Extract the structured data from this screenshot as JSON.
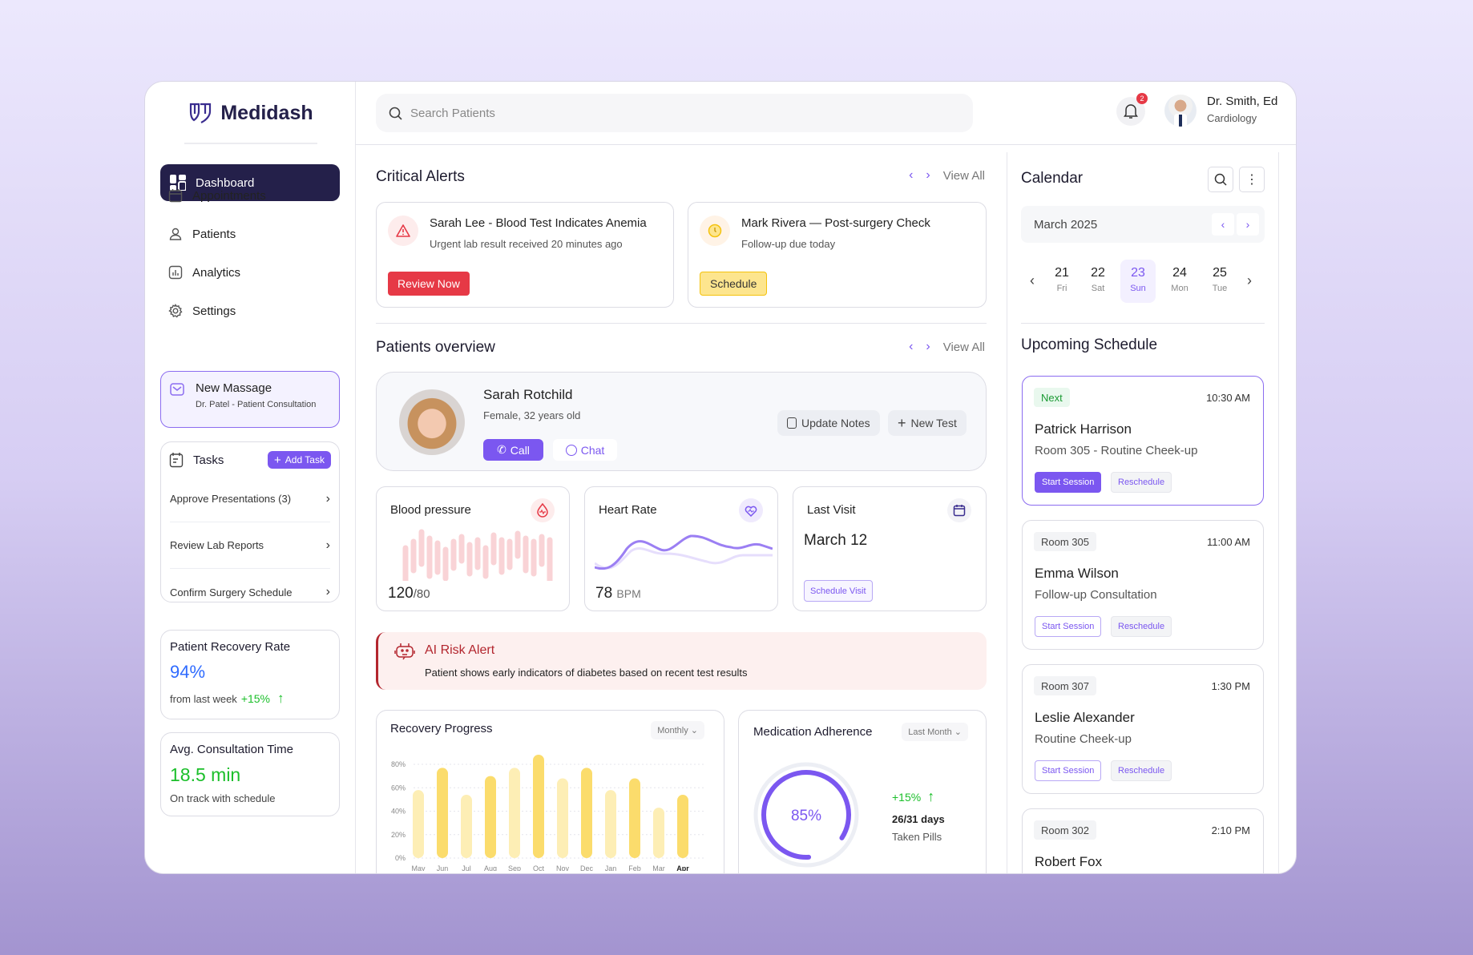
{
  "app": {
    "name": "Medidash"
  },
  "colors": {
    "accent": "#7b57f0",
    "navy": "#24204a",
    "danger": "#e63946",
    "warning": "#fde58e",
    "success": "#1bbf2a",
    "info": "#2f6bff"
  },
  "sidebar": {
    "active": {
      "label": "Dashboard",
      "icon": "grid-icon"
    },
    "items": [
      {
        "label": "Appointments",
        "icon": "calendar-icon"
      },
      {
        "label": "Patients",
        "icon": "users-icon"
      },
      {
        "label": "Analytics",
        "icon": "chart-icon"
      },
      {
        "label": "Settings",
        "icon": "gear-icon"
      }
    ],
    "message": {
      "title": "New Massage",
      "subtitle": "Dr. Patel - Patient Consultation"
    },
    "tasks": {
      "title": "Tasks",
      "add_label": "Add Task",
      "items": [
        "Approve Presentations (3)",
        "Review Lab Reports",
        "Confirm Surgery Schedule"
      ]
    },
    "recovery": {
      "title": "Patient Recovery Rate",
      "value": "94%",
      "note": "from last week",
      "change": "+15%"
    },
    "consult": {
      "title": "Avg. Consultation Time",
      "value": "18.5 min",
      "note": "On track with schedule"
    }
  },
  "header": {
    "search_placeholder": "Search Patients",
    "notifications": "2",
    "user": {
      "name": "Dr. Smith, Ed",
      "dept": "Cardiology"
    }
  },
  "alerts": {
    "title": "Critical Alerts",
    "view_all": "View All",
    "items": [
      {
        "title": "Sarah Lee - Blood Test Indicates Anemia",
        "sub": "Urgent lab result received 20 minutes ago",
        "action": "Review Now"
      },
      {
        "title": "Mark Rivera — Post-surgery Check",
        "sub": "Follow-up due today",
        "action": "Schedule"
      }
    ]
  },
  "overview": {
    "title": "Patients overview",
    "view_all": "View All",
    "patient": {
      "name": "Sarah Rotchild",
      "info": "Female, 32 years old",
      "call": "Call",
      "chat": "Chat",
      "update_notes": "Update Notes",
      "new_test": "New Test"
    },
    "vitals": {
      "bp": {
        "title": "Blood pressure",
        "sys": "120",
        "dia": "/80"
      },
      "hr": {
        "title": "Heart Rate",
        "value": "78",
        "unit": "BPM"
      },
      "visit": {
        "title": "Last Visit",
        "date": "March 12",
        "action": "Schedule Visit"
      }
    },
    "ai": {
      "title": "AI Risk Alert",
      "text": "Patient shows early indicators of diabetes based on recent test results"
    }
  },
  "chart_data": [
    {
      "type": "bar",
      "title": "Recovery Progress",
      "filter": "Monthly",
      "categories": [
        "May",
        "Jun",
        "Jul",
        "Aug",
        "Sep",
        "Oct",
        "Nov",
        "Dec",
        "Jan",
        "Feb",
        "Mar",
        "Apr"
      ],
      "values": [
        58,
        77,
        54,
        70,
        77,
        89,
        68,
        77,
        58,
        68,
        43,
        54
      ],
      "yticks": [
        "0%",
        "20%",
        "40%",
        "60%",
        "80%"
      ],
      "ylim": [
        0,
        80
      ],
      "grid": true,
      "highlight": "Apr"
    },
    {
      "type": "pie",
      "title": "Medication Adherence",
      "filter": "Last Month",
      "value": 85,
      "label": "85%",
      "change": "+15%",
      "days": "26/31 days",
      "caption": "Taken Pills"
    }
  ],
  "calendar": {
    "title": "Calendar",
    "month": "March 2025",
    "days": [
      {
        "n": "21",
        "w": "Fri"
      },
      {
        "n": "22",
        "w": "Sat"
      },
      {
        "n": "23",
        "w": "Sun",
        "selected": true
      },
      {
        "n": "24",
        "w": "Mon"
      },
      {
        "n": "25",
        "w": "Tue"
      }
    ]
  },
  "schedule": {
    "title": "Upcoming Schedule",
    "start": "Start Session",
    "reschedule": "Reschedule",
    "items": [
      {
        "tag": "Next",
        "time": "10:30 AM",
        "name": "Patrick Harrison",
        "desc": "Room 305 - Routine Cheek-up"
      },
      {
        "tag": "Room 305",
        "time": "11:00 AM",
        "name": "Emma Wilson",
        "desc": "Follow-up Consultation"
      },
      {
        "tag": "Room 307",
        "time": "1:30 PM",
        "name": "Leslie Alexander",
        "desc": "Routine Cheek-up"
      },
      {
        "tag": "Room 302",
        "time": "2:10 PM",
        "name": "Robert Fox",
        "desc": ""
      }
    ]
  }
}
